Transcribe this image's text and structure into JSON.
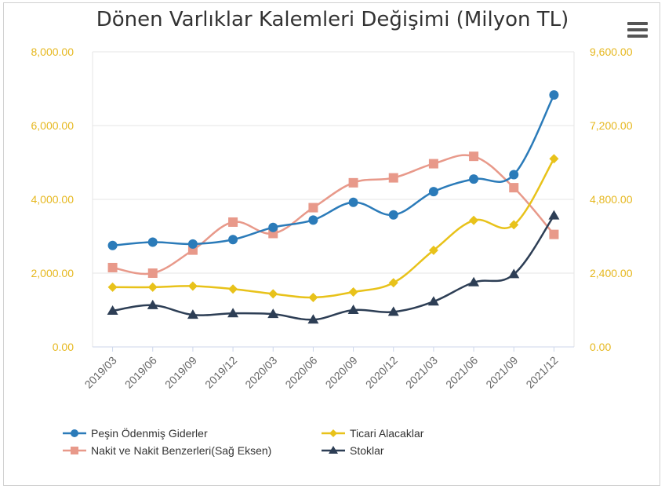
{
  "title": "Dönen Varlıklar Kalemleri Değişimi (Milyon TL)",
  "menu_icon": "hamburger-menu-icon",
  "colors": {
    "left_axis_labels": "#e6b820",
    "right_axis_labels": "#e6b820",
    "grid": "#e6e6e6",
    "axis_line": "#ccd6eb"
  },
  "chart_data": {
    "type": "line",
    "categories": [
      "2019/03",
      "2019/06",
      "2019/09",
      "2019/12",
      "2020/03",
      "2020/06",
      "2020/09",
      "2020/12",
      "2021/03",
      "2021/06",
      "2021/09",
      "2021/12"
    ],
    "y_left": {
      "min": 0,
      "max": 8000,
      "ticks": [
        "0.00",
        "2,000.00",
        "4,000.00",
        "6,000.00",
        "8,000.00"
      ],
      "tick_values": [
        0,
        2000,
        4000,
        6000,
        8000
      ]
    },
    "y_right": {
      "min": 0,
      "max": 9600,
      "ticks": [
        "0.00",
        "2,400.00",
        "4,800.00",
        "7,200.00",
        "9,600.00"
      ],
      "tick_values": [
        0,
        2400,
        4800,
        7200,
        9600
      ]
    },
    "grid": true,
    "legend_position": "bottom",
    "series": [
      {
        "name": "Peşin Ödenmiş Giderler",
        "axis": "left",
        "color": "#2b7bb9",
        "marker": "circle",
        "values": [
          2750,
          2840,
          2790,
          2910,
          3240,
          3440,
          3920,
          3580,
          4210,
          4550,
          4670,
          6830
        ]
      },
      {
        "name": "Nakit ve Nakit Benzerleri(Sağ Eksen)",
        "axis": "right",
        "color": "#e8998a",
        "marker": "square",
        "values": [
          2580,
          2400,
          3150,
          4060,
          3690,
          4530,
          5340,
          5500,
          5960,
          6200,
          5180,
          3660
        ]
      },
      {
        "name": "Ticari Alacaklar",
        "axis": "left",
        "color": "#e8c21a",
        "marker": "diamond",
        "values": [
          1620,
          1620,
          1650,
          1570,
          1440,
          1340,
          1490,
          1740,
          2620,
          3430,
          3310,
          5100
        ]
      },
      {
        "name": "Stoklar",
        "axis": "left",
        "color": "#2d3e55",
        "marker": "triangle",
        "values": [
          980,
          1130,
          870,
          910,
          890,
          740,
          1000,
          950,
          1230,
          1750,
          1970,
          3560
        ]
      }
    ]
  },
  "legend": [
    {
      "label": "Peşin Ödenmiş Giderler",
      "series": 0
    },
    {
      "label": "Ticari Alacaklar",
      "series": 2
    },
    {
      "label": "Nakit ve Nakit Benzerleri(Sağ Eksen)",
      "series": 1
    },
    {
      "label": "Stoklar",
      "series": 3
    }
  ]
}
